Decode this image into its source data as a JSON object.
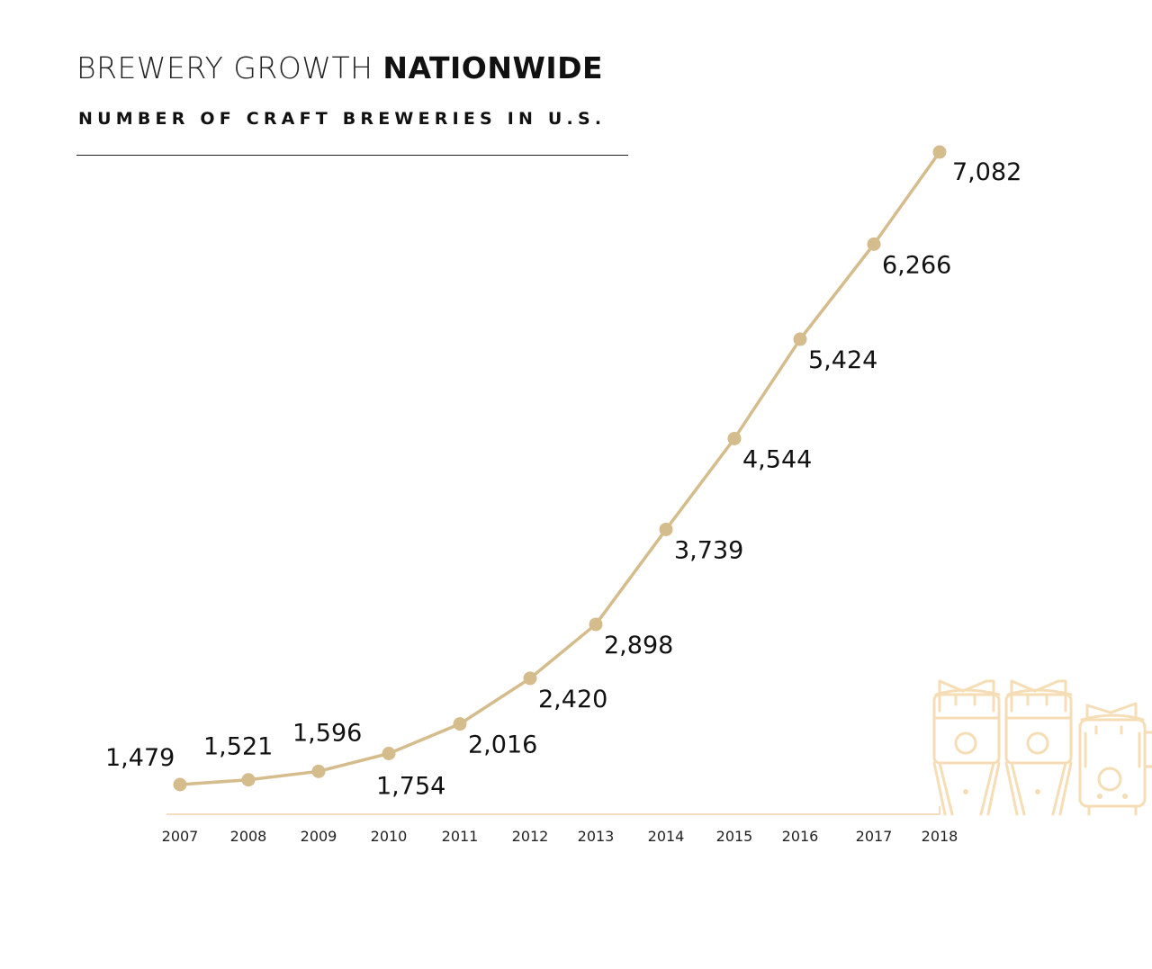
{
  "header": {
    "title_light": "BREWERY GROWTH",
    "title_bold": "NATIONWIDE",
    "subtitle": "NUMBER OF CRAFT BREWERIES IN U.S."
  },
  "colors": {
    "line": "#D5BC8C",
    "marker": "#D5BC8C",
    "baseline": "#F3DFBD",
    "illustration": "#F5DDB5",
    "text": "#111111"
  },
  "illustration": {
    "icon": "brewery-tanks-icon"
  },
  "chart_data": {
    "type": "line",
    "title": "BREWERY GROWTH NATIONWIDE",
    "subtitle": "NUMBER OF CRAFT BREWERIES IN U.S.",
    "xlabel": "",
    "ylabel": "",
    "categories": [
      "2007",
      "2008",
      "2009",
      "2010",
      "2011",
      "2012",
      "2013",
      "2014",
      "2015",
      "2016",
      "2017",
      "2018"
    ],
    "series": [
      {
        "name": "Craft breweries",
        "values": [
          1479,
          1521,
          1596,
          1754,
          2016,
          2420,
          2898,
          3739,
          4544,
          5424,
          6266,
          7082
        ]
      }
    ],
    "data_labels": [
      "1,479",
      "1,521",
      "1,596",
      "1,754",
      "2,016",
      "2,420",
      "2,898",
      "3,739",
      "4,544",
      "5,424",
      "6,266",
      "7,082"
    ],
    "label_positions": [
      "left",
      "above",
      "above",
      "below",
      "below-right",
      "below-right",
      "below-right",
      "below-right",
      "below-right",
      "below-right",
      "below-right",
      "right"
    ],
    "grid": false,
    "y_axis_visible": false,
    "legend": "none"
  }
}
